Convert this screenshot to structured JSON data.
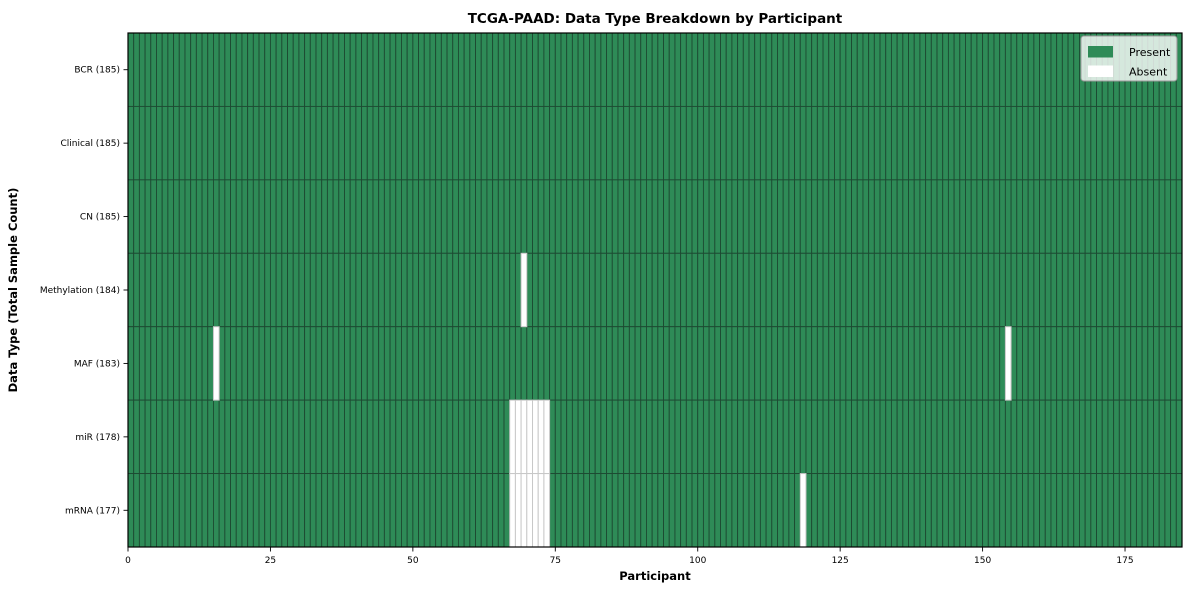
{
  "title": "TCGA-PAAD: Data Type Breakdown by Participant",
  "colors": {
    "present": "#2e8b57",
    "absent": "#ffffff",
    "present_cell_edge": "#1d4a32",
    "absent_cell_edge": "#c8c8c8",
    "plot_frame": "#000000",
    "legend_border": "#9a9a9a",
    "legend_background": "#ffffff",
    "text": "#000000",
    "figure_background": "#ffffff"
  },
  "legend": {
    "position": "upper-right",
    "items": [
      {
        "label": "Present",
        "color": "#2e8b57"
      },
      {
        "label": "Absent",
        "color": "#ffffff"
      }
    ]
  },
  "chart_data": {
    "type": "heatmap",
    "title": "TCGA-PAAD: Data Type Breakdown by Participant",
    "xlabel": "Participant",
    "ylabel": "Data Type (Total Sample Count)",
    "xlim": [
      0,
      185
    ],
    "x_ticks": [
      0,
      25,
      50,
      75,
      100,
      125,
      150,
      175
    ],
    "n_participants": 185,
    "grid": "cell-borders",
    "legend_entries": [
      "Present",
      "Absent"
    ],
    "legend_position": "upper-right",
    "rows": [
      {
        "label": "BCR (185)",
        "total_samples": 185,
        "absent_participants": []
      },
      {
        "label": "Clinical (185)",
        "total_samples": 185,
        "absent_participants": []
      },
      {
        "label": "CN (185)",
        "total_samples": 185,
        "absent_participants": []
      },
      {
        "label": "Methylation (184)",
        "total_samples": 184,
        "absent_participants": [
          69
        ]
      },
      {
        "label": "MAF (183)",
        "total_samples": 183,
        "absent_participants": [
          15,
          154
        ]
      },
      {
        "label": "miR (178)",
        "total_samples": 178,
        "absent_participants": [
          67,
          68,
          69,
          70,
          71,
          72,
          73
        ]
      },
      {
        "label": "mRNA (177)",
        "total_samples": 177,
        "absent_participants": [
          67,
          68,
          69,
          70,
          71,
          72,
          73,
          118
        ]
      }
    ]
  }
}
